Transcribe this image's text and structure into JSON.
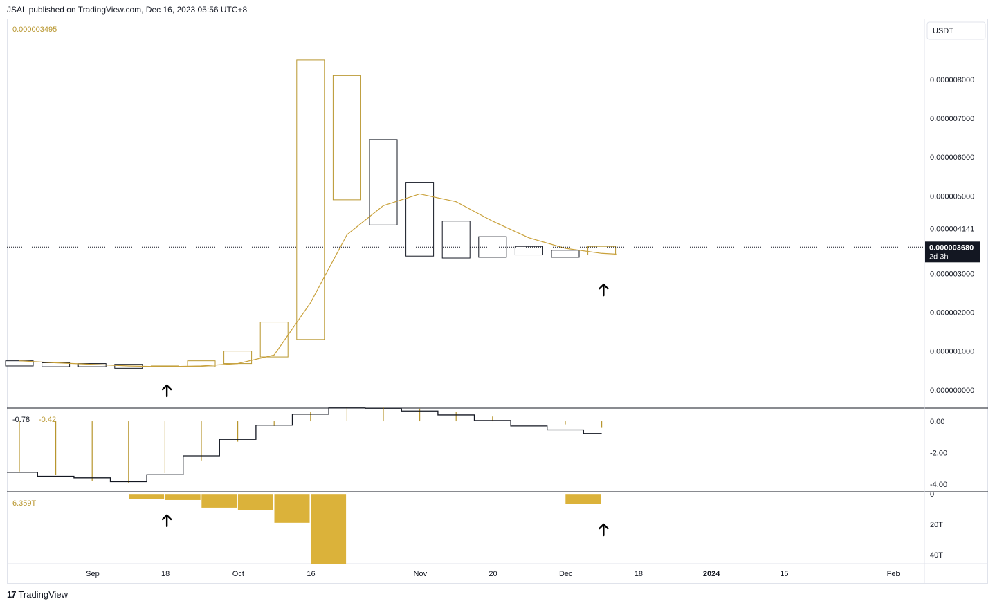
{
  "header": {
    "text": "JSAL published on TradingView.com, Dec 16, 2023 05:56 UTC+8"
  },
  "footer": {
    "logo": "17",
    "text": "TradingView"
  },
  "colors": {
    "up": "#b8962e",
    "down": "#131722",
    "ma": "#c9a13b",
    "volume": "#dbb23a",
    "osc_hist": "#b8962e",
    "osc_line": "#131722"
  },
  "chart_data": [
    {
      "type": "candlestick",
      "title": "",
      "currency_label": "USDT",
      "top_left_value": "0.000003495",
      "yticks": [
        "0.000008000",
        "0.000007000",
        "0.000006000",
        "0.000005000",
        "0.000003000",
        "0.000002000",
        "0.000001000",
        "0.000000000"
      ],
      "ytick_values": [
        8,
        7,
        6,
        5,
        3,
        2,
        1,
        0
      ],
      "ylim": [
        -0.45,
        9.55
      ],
      "y_unit_scale": "values are in units of 0.000001 USDT",
      "last_price": {
        "label": "0.000003680",
        "countdown": "2d 3h",
        "value": 3.68
      },
      "prev_price_label": {
        "label": "0.000004141",
        "value": 4.141
      },
      "x_labels": [
        "Sep",
        "18",
        "Oct",
        "16",
        "Nov",
        "20",
        "Dec",
        "18",
        "2024",
        "15",
        "Feb"
      ],
      "x_label_weeks": [
        1.9,
        3.9,
        5.9,
        7.9,
        10.9,
        12.9,
        14.9,
        16.9,
        18.9,
        20.9,
        23.9
      ],
      "candles": [
        {
          "t": 0,
          "o": 0.75,
          "c": 0.62,
          "dir": "down"
        },
        {
          "t": 1,
          "o": 0.7,
          "c": 0.6,
          "dir": "down"
        },
        {
          "t": 2,
          "o": 0.68,
          "c": 0.6,
          "dir": "down"
        },
        {
          "t": 3,
          "o": 0.66,
          "c": 0.56,
          "dir": "down"
        },
        {
          "t": 4,
          "o": 0.62,
          "c": 0.62,
          "dir": "up"
        },
        {
          "t": 5,
          "o": 0.6,
          "c": 0.75,
          "dir": "up"
        },
        {
          "t": 6,
          "o": 0.68,
          "c": 1.0,
          "dir": "up"
        },
        {
          "t": 7,
          "o": 0.85,
          "c": 1.75,
          "dir": "up"
        },
        {
          "t": 8,
          "o": 1.3,
          "c": 8.5,
          "dir": "up"
        },
        {
          "t": 9,
          "o": 4.9,
          "c": 8.1,
          "dir": "up"
        },
        {
          "t": 10,
          "o": 6.45,
          "c": 4.25,
          "dir": "down"
        },
        {
          "t": 11,
          "o": 5.35,
          "c": 3.45,
          "dir": "down"
        },
        {
          "t": 12,
          "o": 4.35,
          "c": 3.4,
          "dir": "down"
        },
        {
          "t": 13,
          "o": 3.95,
          "c": 3.42,
          "dir": "down"
        },
        {
          "t": 14,
          "o": 3.7,
          "c": 3.48,
          "dir": "down"
        },
        {
          "t": 15,
          "o": 3.6,
          "c": 3.42,
          "dir": "down"
        },
        {
          "t": 16,
          "o": 3.48,
          "c": 3.7,
          "dir": "up"
        }
      ],
      "ma": [
        {
          "t": 0,
          "v": 0.75
        },
        {
          "t": 1,
          "v": 0.7
        },
        {
          "t": 2,
          "v": 0.66
        },
        {
          "t": 3,
          "v": 0.62
        },
        {
          "t": 4,
          "v": 0.6
        },
        {
          "t": 5,
          "v": 0.62
        },
        {
          "t": 6,
          "v": 0.68
        },
        {
          "t": 7,
          "v": 0.9
        },
        {
          "t": 8,
          "v": 2.25
        },
        {
          "t": 9,
          "v": 4.0
        },
        {
          "t": 10,
          "v": 4.75
        },
        {
          "t": 11,
          "v": 5.05
        },
        {
          "t": 12,
          "v": 4.85
        },
        {
          "t": 13,
          "v": 4.35
        },
        {
          "t": 14,
          "v": 3.92
        },
        {
          "t": 15,
          "v": 3.65
        },
        {
          "t": 16,
          "v": 3.52
        },
        {
          "t": 16.4,
          "v": 3.5
        }
      ],
      "arrows": [
        {
          "t": 3.9,
          "v": 0.12
        },
        {
          "t": 15.9,
          "v": 2.72
        }
      ]
    },
    {
      "type": "line",
      "title": "",
      "legend_values": [
        "-0.78",
        "-0.42"
      ],
      "yticks": [
        "0.00",
        "-2.00",
        "-4.00"
      ],
      "ytick_values": [
        0,
        -2,
        -4
      ],
      "ylim": [
        -4.4,
        0.75
      ],
      "step_line": [
        {
          "t": 0,
          "v": -3.25
        },
        {
          "t": 0.5,
          "v": -3.25
        },
        {
          "t": 0.5,
          "v": -3.5
        },
        {
          "t": 1.5,
          "v": -3.5
        },
        {
          "t": 1.5,
          "v": -3.6
        },
        {
          "t": 2.5,
          "v": -3.6
        },
        {
          "t": 2.5,
          "v": -3.85
        },
        {
          "t": 3.5,
          "v": -3.85
        },
        {
          "t": 3.5,
          "v": -3.4
        },
        {
          "t": 4.5,
          "v": -3.4
        },
        {
          "t": 4.5,
          "v": -2.2
        },
        {
          "t": 5.5,
          "v": -2.2
        },
        {
          "t": 5.5,
          "v": -1.15
        },
        {
          "t": 6.5,
          "v": -1.15
        },
        {
          "t": 6.5,
          "v": -0.25
        },
        {
          "t": 7.5,
          "v": -0.25
        },
        {
          "t": 7.5,
          "v": 0.45
        },
        {
          "t": 8.5,
          "v": 0.45
        },
        {
          "t": 8.5,
          "v": 0.85
        },
        {
          "t": 9.5,
          "v": 0.85
        },
        {
          "t": 9.5,
          "v": 0.78
        },
        {
          "t": 10.5,
          "v": 0.78
        },
        {
          "t": 10.5,
          "v": 0.65
        },
        {
          "t": 11.5,
          "v": 0.65
        },
        {
          "t": 11.5,
          "v": 0.4
        },
        {
          "t": 12.5,
          "v": 0.4
        },
        {
          "t": 12.5,
          "v": 0.05
        },
        {
          "t": 13.5,
          "v": 0.05
        },
        {
          "t": 13.5,
          "v": -0.3
        },
        {
          "t": 14.5,
          "v": -0.3
        },
        {
          "t": 14.5,
          "v": -0.55
        },
        {
          "t": 15.5,
          "v": -0.55
        },
        {
          "t": 15.5,
          "v": -0.78
        },
        {
          "t": 16,
          "v": -0.78
        }
      ],
      "hist": [
        {
          "t": 0,
          "v": -3.2
        },
        {
          "t": 1,
          "v": -3.4
        },
        {
          "t": 2,
          "v": -3.8
        },
        {
          "t": 3,
          "v": -3.95
        },
        {
          "t": 4,
          "v": -3.3
        },
        {
          "t": 5,
          "v": -2.5
        },
        {
          "t": 6,
          "v": -1.3
        },
        {
          "t": 7,
          "v": -0.3
        },
        {
          "t": 8,
          "v": 0.6
        },
        {
          "t": 9,
          "v": 0.9
        },
        {
          "t": 10,
          "v": 0.9
        },
        {
          "t": 11,
          "v": 0.8
        },
        {
          "t": 12,
          "v": 0.6
        },
        {
          "t": 13,
          "v": 0.3
        },
        {
          "t": 14,
          "v": 0.05
        },
        {
          "t": 15,
          "v": -0.2
        },
        {
          "t": 16,
          "v": -0.42
        }
      ]
    },
    {
      "type": "bar",
      "title": "",
      "legend_value": "6.359T",
      "yticks": [
        "0",
        "20T",
        "40T"
      ],
      "ytick_values": [
        0,
        20,
        40
      ],
      "ylim": [
        46,
        -1
      ],
      "units": "trillions",
      "bars": [
        {
          "t": 3.5,
          "v": 3.5
        },
        {
          "t": 4.5,
          "v": 4.0
        },
        {
          "t": 5.5,
          "v": 9.0
        },
        {
          "t": 6.5,
          "v": 10.5
        },
        {
          "t": 7.5,
          "v": 19.0
        },
        {
          "t": 8.5,
          "v": 47.0
        },
        {
          "t": 15.5,
          "v": 6.359
        }
      ],
      "arrows": [
        {
          "t": 3.9,
          "v": 14
        },
        {
          "t": 15.9,
          "v": 20
        }
      ]
    }
  ]
}
